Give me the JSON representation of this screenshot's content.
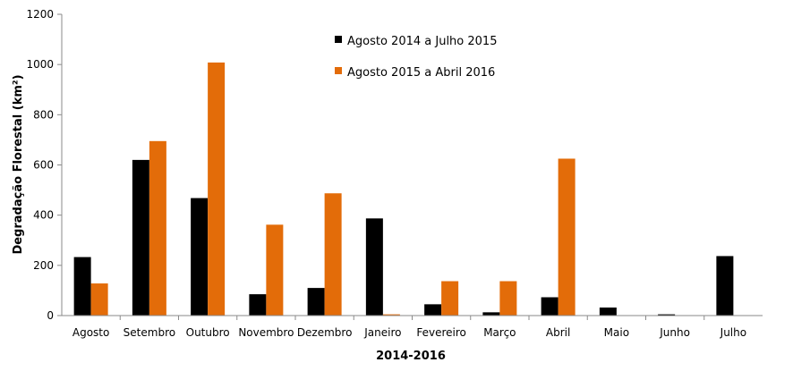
{
  "chart_data": {
    "type": "bar",
    "title": "",
    "xlabel": "2014-2016",
    "ylabel": "Degradação Florestal (km²)",
    "ylim": [
      0,
      1200
    ],
    "yticks": [
      "0",
      "200",
      "400",
      "600",
      "800",
      "1000",
      "1200"
    ],
    "grid": false,
    "legend_position": "top-center",
    "categories": [
      "Agosto",
      "Setembro",
      "Outubro",
      "Novembro",
      "Dezembro",
      "Janeiro",
      "Fevereiro",
      "Março",
      "Abril",
      "Maio",
      "Junho",
      "Julho"
    ],
    "series": [
      {
        "name": "Agosto 2014 a Julho 2015",
        "color": "#000000",
        "values": [
          233,
          620,
          468,
          85,
          110,
          387,
          45,
          13,
          73,
          32,
          5,
          237
        ]
      },
      {
        "name": "Agosto 2015 a Abril 2016",
        "color": "#e36c09",
        "values": [
          128,
          695,
          1008,
          362,
          487,
          5,
          137,
          137,
          625,
          null,
          null,
          null
        ]
      }
    ]
  }
}
